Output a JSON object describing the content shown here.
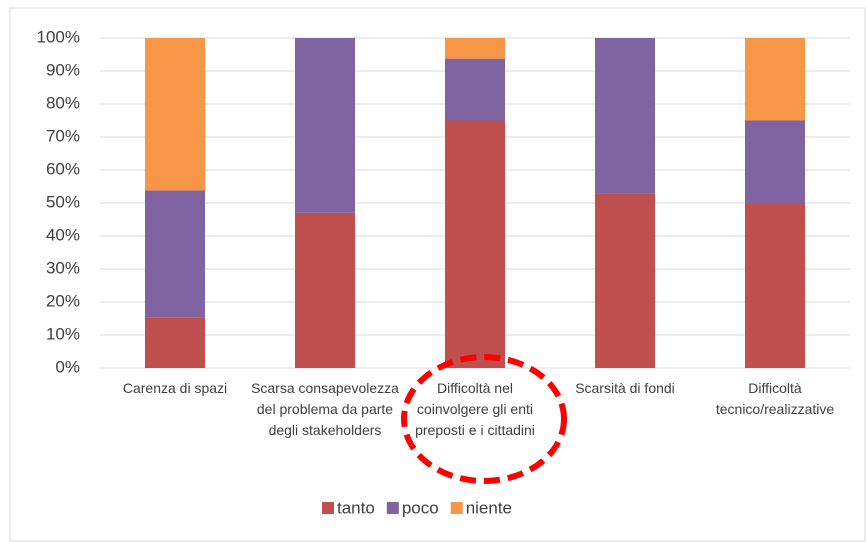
{
  "chart_data": {
    "type": "stacked_bar",
    "categories": [
      "Carenza di spazi",
      "Scarsa consapevolezza del problema da parte degli stakeholders",
      "Difficoltà nel coinvolgere gli enti preposti e i cittadini",
      "Scarsità di fondi",
      "Difficoltà tecnico/realizzative"
    ],
    "series": [
      {
        "name": "tanto",
        "color": "#c0504d",
        "values": [
          15.4,
          47,
          75,
          53,
          50
        ]
      },
      {
        "name": "poco",
        "color": "#8064a2",
        "values": [
          38.4,
          53,
          18.75,
          47,
          25
        ]
      },
      {
        "name": "niente",
        "color": "#f79646",
        "values": [
          46.2,
          0,
          6.25,
          0,
          25
        ]
      }
    ],
    "ylim": [
      0,
      100
    ],
    "yticks": [
      {
        "value": 0,
        "label": "0%"
      },
      {
        "value": 10,
        "label": "10%"
      },
      {
        "value": 20,
        "label": "20%"
      },
      {
        "value": 30,
        "label": "30%"
      },
      {
        "value": 40,
        "label": "40%"
      },
      {
        "value": 50,
        "label": "50%"
      },
      {
        "value": 60,
        "label": "60%"
      },
      {
        "value": 70,
        "label": "70%"
      },
      {
        "value": 80,
        "label": "80%"
      },
      {
        "value": 90,
        "label": "90%"
      },
      {
        "value": 100,
        "label": "100%"
      }
    ],
    "legend": "bottom"
  }
}
